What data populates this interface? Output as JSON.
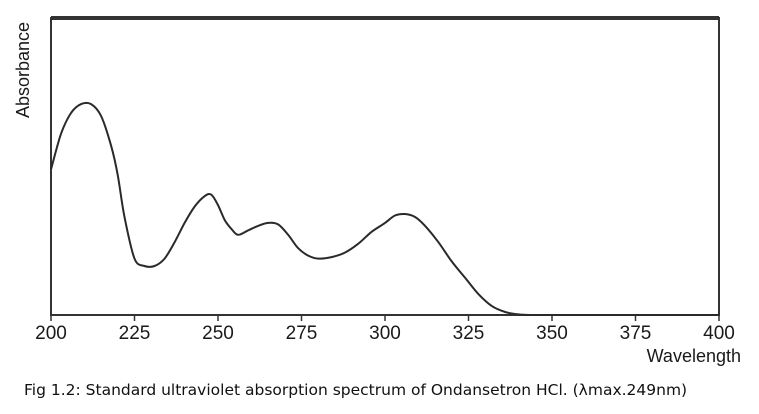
{
  "caption": "Fig 1.2: Standard ultraviolet absorption spectrum of Ondansetron HCl. (λmax.249nm)",
  "chart_data": {
    "type": "line",
    "title": "",
    "xlabel": "Wavelength",
    "ylabel": "Absorbance",
    "xlim": [
      200,
      400
    ],
    "ylim": [
      0,
      1
    ],
    "x_ticks": [
      200,
      225,
      250,
      275,
      300,
      325,
      350,
      375,
      400
    ],
    "y_ticks": [],
    "grid": false,
    "line_color": "#2a2a2a",
    "series": [
      {
        "x": [
          200,
          203,
          206,
          209,
          212,
          215,
          218,
          220,
          222,
          225,
          228,
          231,
          234,
          237,
          240,
          243,
          246,
          248,
          250,
          252,
          254,
          256,
          259,
          262,
          265,
          268,
          271,
          274,
          277,
          280,
          284,
          288,
          292,
          296,
          300,
          303,
          306,
          309,
          312,
          316,
          320,
          324,
          328,
          332,
          336,
          340,
          344,
          348,
          360,
          380,
          400
        ],
        "y": [
          0.49,
          0.61,
          0.68,
          0.71,
          0.71,
          0.67,
          0.57,
          0.47,
          0.33,
          0.19,
          0.165,
          0.165,
          0.19,
          0.245,
          0.31,
          0.365,
          0.4,
          0.405,
          0.37,
          0.32,
          0.29,
          0.27,
          0.285,
          0.3,
          0.31,
          0.305,
          0.27,
          0.225,
          0.2,
          0.19,
          0.195,
          0.21,
          0.24,
          0.28,
          0.31,
          0.335,
          0.34,
          0.33,
          0.3,
          0.245,
          0.18,
          0.125,
          0.07,
          0.03,
          0.01,
          0.002,
          0.0,
          0.0,
          0.0,
          0.0,
          0.0
        ]
      }
    ]
  }
}
